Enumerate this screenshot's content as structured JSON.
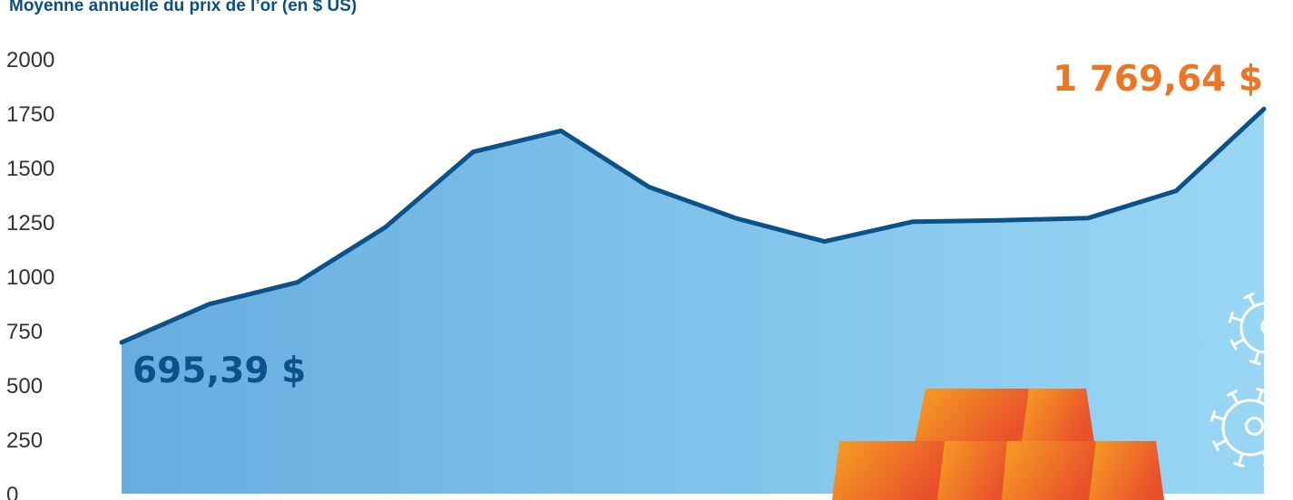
{
  "colors": {
    "title": "#0a4f86",
    "line": "#0a5289",
    "area_start": "#66addf",
    "area_end": "#9ad7f5",
    "start_label": "#0a5289",
    "end_label": "#ee7522",
    "axis_text": "#333333",
    "gold_light": "#f6a021",
    "gold_dark": "#e9502c",
    "virus_icon": "#ffffff"
  },
  "chart_data": {
    "type": "area",
    "title": "Moyenne annuelle du prix de l’or (en $ US)",
    "xlabel": "",
    "ylabel": "",
    "ylim": [
      0,
      2000
    ],
    "yticks": [
      "0",
      "250",
      "500",
      "750",
      "1000",
      "1250",
      "1500",
      "1750",
      "2000"
    ],
    "grid": false,
    "legend": "none",
    "series": [
      {
        "values": [
          695.39,
          872,
          972,
          1225,
          1572,
          1669,
          1411,
          1266,
          1160,
          1251,
          1257,
          1268,
          1393,
          1769.64
        ]
      }
    ],
    "annotations": {
      "start": "695,39 $",
      "end": "1 769,64 $"
    }
  },
  "icons": [
    "gold-bars-icon",
    "virus-icon"
  ]
}
